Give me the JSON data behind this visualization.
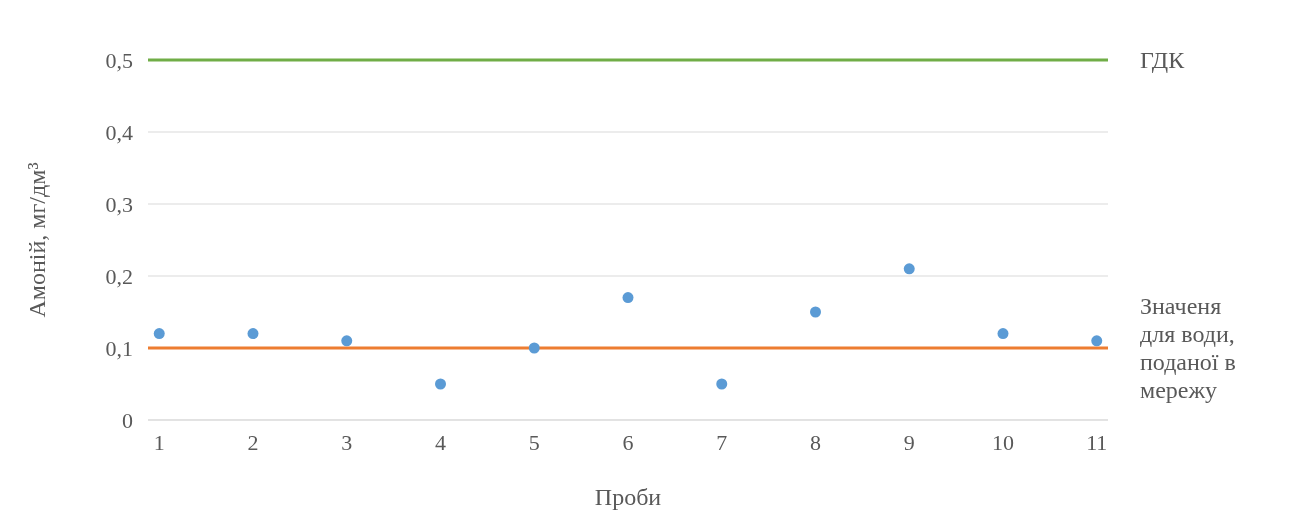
{
  "chart_data": {
    "type": "scatter",
    "xlabel": "Проби",
    "ylabel": "Амоній, мг/дм³",
    "categories": [
      "1",
      "2",
      "3",
      "4",
      "5",
      "6",
      "7",
      "8",
      "9",
      "10",
      "11"
    ],
    "series": [
      {
        "color": "#5b9bd5",
        "values": [
          0.12,
          0.12,
          0.11,
          0.05,
          0.1,
          0.17,
          0.05,
          0.15,
          0.21,
          0.12,
          0.11
        ]
      }
    ],
    "ylim": [
      0,
      0.5
    ],
    "yticks": [
      {
        "value": 0,
        "label": "0"
      },
      {
        "value": 0.1,
        "label": "0,1"
      },
      {
        "value": 0.2,
        "label": "0,2"
      },
      {
        "value": 0.3,
        "label": "0,3"
      },
      {
        "value": 0.4,
        "label": "0,4"
      },
      {
        "value": 0.5,
        "label": "0,5"
      }
    ],
    "grid": "y",
    "marker": "circle",
    "ref_lines": [
      {
        "axis": "y",
        "value": 0.5,
        "label": "ГДК",
        "color": "#70ad47"
      },
      {
        "axis": "y",
        "value": 0.1,
        "label": "Значеня для води, поданої в мережу",
        "color": "#ed7d31"
      }
    ]
  }
}
